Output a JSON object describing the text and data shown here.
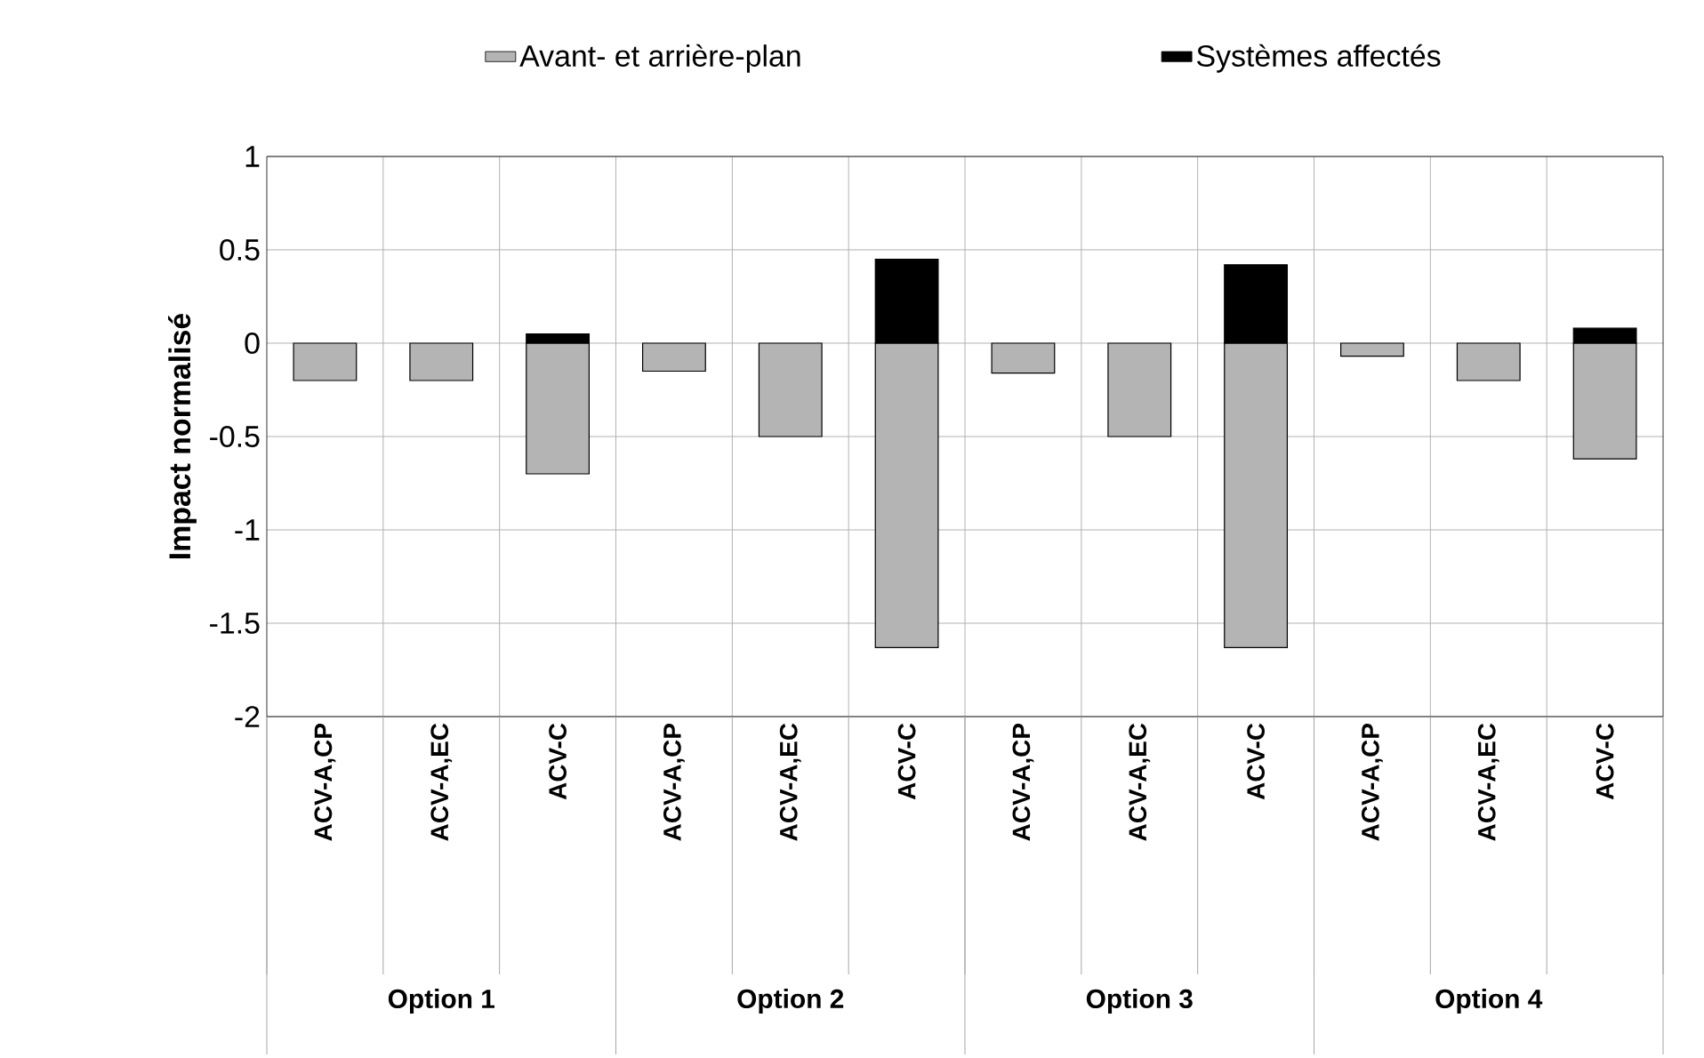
{
  "chart_data": {
    "type": "bar",
    "stacked": true,
    "ylabel": "Impact normalisé",
    "categories": [
      "ACV-A,CP",
      "ACV-A,EC",
      "ACV-C",
      "ACV-A,CP",
      "ACV-A,EC",
      "ACV-C",
      "ACV-A,CP",
      "ACV-A,EC",
      "ACV-C",
      "ACV-A,CP",
      "ACV-A,EC",
      "ACV-C"
    ],
    "series": [
      {
        "name": "Avant- et arrière-plan",
        "color": "#b4b4b4",
        "values": [
          -0.2,
          -0.2,
          -0.7,
          -0.15,
          -0.5,
          -1.63,
          -0.16,
          -0.5,
          -1.63,
          -0.07,
          -0.2,
          -0.62
        ]
      },
      {
        "name": "Systèmes affectés",
        "color": "#000000",
        "values": [
          0,
          0,
          0.05,
          0,
          0,
          0.45,
          0,
          0,
          0.42,
          0,
          0,
          0.08
        ]
      }
    ],
    "ylim": [
      -2,
      1
    ],
    "yticks": [
      -2,
      -1.5,
      -1,
      -0.5,
      0,
      0.5,
      1
    ],
    "grid": true,
    "legend": "top",
    "annotations": [
      "Option 1",
      "Option 2",
      "Option 3",
      "Option 4"
    ]
  }
}
